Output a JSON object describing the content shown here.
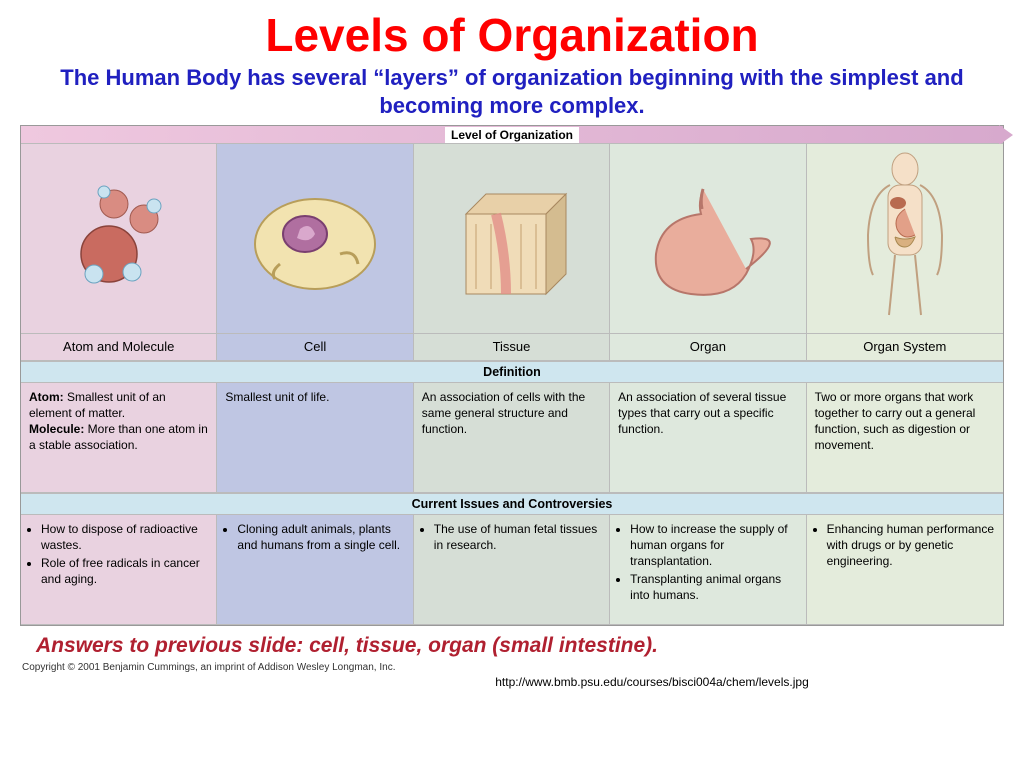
{
  "title": {
    "text": "Levels of Organization",
    "color": "#ff0000"
  },
  "subtitle": {
    "text": "The Human Body has several “layers” of organization beginning with the simplest and becoming more complex.",
    "color": "#2020c0"
  },
  "chart": {
    "arrow_label": "Level of Organization",
    "arrow_color": "#d7a9cd",
    "section_head_bg": "#cfe6ef",
    "columns": [
      {
        "label": "Atom and Molecule",
        "bg": "#e9d2e0",
        "definition_html": "<b>Atom:</b> Smallest unit of an element of matter.<br><b>Molecule:</b> More than one atom in a stable association.",
        "issues": [
          "How to dispose of radioactive wastes.",
          "Role of free radicals in cancer and aging."
        ],
        "icon": "atom-molecule-icon"
      },
      {
        "label": "Cell",
        "bg": "#bfc6e3",
        "definition_html": "Smallest unit of life.",
        "issues": [
          "Cloning adult animals, plants and humans from a single cell."
        ],
        "icon": "cell-icon"
      },
      {
        "label": "Tissue",
        "bg": "#d6ded6",
        "definition_html": "An association of cells with the same general structure and function.",
        "issues": [
          "The use of human fetal tissues in research."
        ],
        "icon": "tissue-icon"
      },
      {
        "label": "Organ",
        "bg": "#dee8dd",
        "definition_html": "An association of several tissue types that carry out a specific function.",
        "issues": [
          "How to increase the supply of human organs for transplantation.",
          "Transplanting animal organs into humans."
        ],
        "icon": "organ-icon"
      },
      {
        "label": "Organ System",
        "bg": "#e4ecdc",
        "definition_html": "Two or more organs that work together to carry out a general function, such as digestion or movement.",
        "issues": [
          "Enhancing human performance with drugs or by genetic engineering."
        ],
        "icon": "organ-system-icon"
      }
    ],
    "col_widths_pct": [
      20,
      20,
      20,
      20,
      20
    ],
    "definition_header": "Definition",
    "issues_header": "Current Issues and Controversies"
  },
  "answers": {
    "text": "Answers to previous slide: cell, tissue, organ (small intestine).",
    "color": "#b02030"
  },
  "copyright": "Copyright © 2001 Benjamin Cummings, an imprint of Addison Wesley Longman, Inc.",
  "url": "http://www.bmb.psu.edu/courses/bisci004a/chem/levels.jpg"
}
